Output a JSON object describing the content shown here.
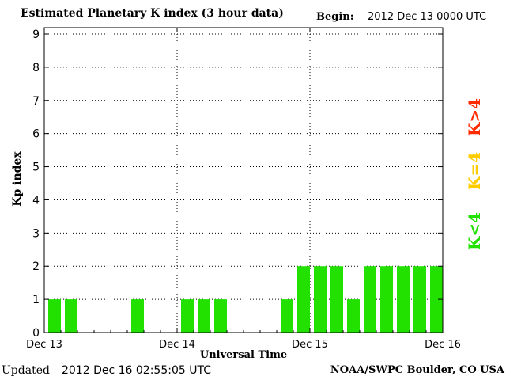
{
  "header": {
    "title": "Estimated Planetary K index (3 hour data)",
    "begin_label": "Begin:",
    "begin_value": "2012 Dec 13 0000 UTC"
  },
  "footer": {
    "updated_label": "Updated",
    "updated_value": "2012 Dec 16 02:55:05 UTC",
    "credit": "NOAA/SWPC Boulder, CO USA"
  },
  "legend": [
    {
      "label": "K>4",
      "color": "#ff2a00"
    },
    {
      "label": "K=4",
      "color": "#ffcc00"
    },
    {
      "label": "K<4",
      "color": "#22e000"
    }
  ],
  "chart_data": {
    "type": "bar",
    "xlabel": "Universal Time",
    "ylabel": "Kp index",
    "ylim": [
      0,
      9
    ],
    "yticks": [
      "0",
      "1",
      "2",
      "3",
      "4",
      "5",
      "6",
      "7",
      "8",
      "9"
    ],
    "xtick_labels": [
      "Dec 13",
      "Dec 14",
      "Dec 15",
      "Dec 16"
    ],
    "bar_color": "#22e000",
    "values": [
      1,
      1,
      0,
      0,
      0,
      1,
      0,
      0,
      1,
      1,
      1,
      0,
      0,
      0,
      1,
      2,
      2,
      2,
      1,
      2,
      2,
      2,
      2,
      2
    ],
    "grid": "dotted vertical at day boundaries, dotted horizontal at each Kp level"
  }
}
